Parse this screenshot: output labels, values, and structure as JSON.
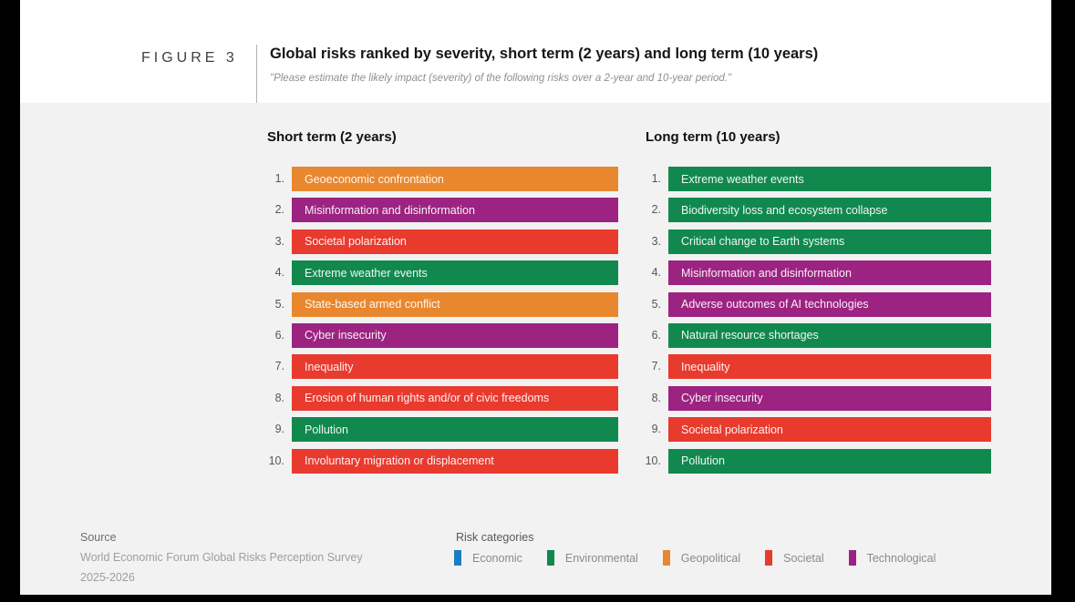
{
  "header": {
    "figure_label": "FIGURE 3",
    "title": "Global risks ranked by severity, short term (2 years) and long term (10 years)",
    "subtitle": "\"Please estimate the likely impact (severity) of the following risks over a 2-year and 10-year period.\""
  },
  "colors": {
    "economic": "#1F7CC0",
    "environmental": "#11894E",
    "geopolitical": "#E8872E",
    "societal": "#E93A2E",
    "technological": "#9C2381"
  },
  "columns": [
    {
      "heading": "Short term (2 years)",
      "items": [
        {
          "rank_label": "1.",
          "label": "Geoeconomic confrontation",
          "category_key": "geopolitical"
        },
        {
          "rank_label": "2.",
          "label": "Misinformation and disinformation",
          "category_key": "technological"
        },
        {
          "rank_label": "3.",
          "label": "Societal polarization",
          "category_key": "societal"
        },
        {
          "rank_label": "4.",
          "label": "Extreme weather events",
          "category_key": "environmental"
        },
        {
          "rank_label": "5.",
          "label": "State-based armed conflict",
          "category_key": "geopolitical"
        },
        {
          "rank_label": "6.",
          "label": "Cyber insecurity",
          "category_key": "technological"
        },
        {
          "rank_label": "7.",
          "label": "Inequality",
          "category_key": "societal"
        },
        {
          "rank_label": "8.",
          "label": "Erosion of human rights and/or of civic freedoms",
          "category_key": "societal"
        },
        {
          "rank_label": "9.",
          "label": "Pollution",
          "category_key": "environmental"
        },
        {
          "rank_label": "10.",
          "label": "Involuntary migration or displacement",
          "category_key": "societal"
        }
      ]
    },
    {
      "heading": "Long term (10 years)",
      "items": [
        {
          "rank_label": "1.",
          "label": "Extreme weather events",
          "category_key": "environmental"
        },
        {
          "rank_label": "2.",
          "label": "Biodiversity loss and ecosystem collapse",
          "category_key": "environmental"
        },
        {
          "rank_label": "3.",
          "label": "Critical change to Earth systems",
          "category_key": "environmental"
        },
        {
          "rank_label": "4.",
          "label": "Misinformation and disinformation",
          "category_key": "technological"
        },
        {
          "rank_label": "5.",
          "label": "Adverse outcomes of AI technologies",
          "category_key": "technological"
        },
        {
          "rank_label": "6.",
          "label": "Natural resource shortages",
          "category_key": "environmental"
        },
        {
          "rank_label": "7.",
          "label": "Inequality",
          "category_key": "societal"
        },
        {
          "rank_label": "8.",
          "label": "Cyber insecurity",
          "category_key": "technological"
        },
        {
          "rank_label": "9.",
          "label": "Societal polarization",
          "category_key": "societal"
        },
        {
          "rank_label": "10.",
          "label": "Pollution",
          "category_key": "environmental"
        }
      ]
    }
  ],
  "footer": {
    "source_label": "Source",
    "source_line1": "World Economic Forum Global Risks Perception Survey",
    "source_line2": "2025-2026",
    "legend_title": "Risk categories",
    "legend": [
      {
        "label": "Economic",
        "color_key": "economic"
      },
      {
        "label": "Environmental",
        "color_key": "environmental"
      },
      {
        "label": "Geopolitical",
        "color_key": "geopolitical"
      },
      {
        "label": "Societal",
        "color_key": "societal"
      },
      {
        "label": "Technological",
        "color_key": "technological"
      }
    ]
  },
  "chart_data": {
    "type": "table",
    "title": "Global risks ranked by severity, short term (2 years) and long term (10 years)",
    "legend_position": "bottom",
    "categories": [
      "Economic",
      "Environmental",
      "Geopolitical",
      "Societal",
      "Technological"
    ],
    "series": [
      {
        "name": "Short term (2 years)",
        "ranking": [
          "Geoeconomic confrontation",
          "Misinformation and disinformation",
          "Societal polarization",
          "Extreme weather events",
          "State-based armed conflict",
          "Cyber insecurity",
          "Inequality",
          "Erosion of human rights and/or of civic freedoms",
          "Pollution",
          "Involuntary migration or displacement"
        ]
      },
      {
        "name": "Long term (10 years)",
        "ranking": [
          "Extreme weather events",
          "Biodiversity loss and ecosystem collapse",
          "Critical change to Earth systems",
          "Misinformation and disinformation",
          "Adverse outcomes of AI technologies",
          "Natural resource shortages",
          "Inequality",
          "Cyber insecurity",
          "Societal polarization",
          "Pollution"
        ]
      }
    ]
  }
}
